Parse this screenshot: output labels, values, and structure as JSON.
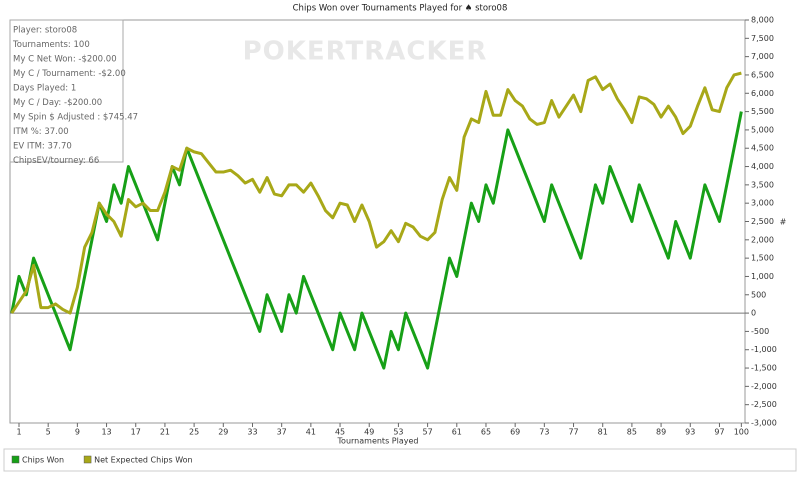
{
  "chart_data": {
    "type": "line",
    "title": "Chips Won over Tournaments Played for ♠ storo08",
    "watermark": "POKERTRACKER",
    "x_label": "Tournaments Played",
    "y_label": "#",
    "info": [
      "Player: storo08",
      "Tournaments: 100",
      "My C Net Won: -$200.00",
      "My C / Tournament: -$2.00",
      "Days Played: 1",
      "My C / Day: -$200.00",
      "My Spin $ Adjusted : $745.47",
      "ITM %: 37.00",
      "EV ITM: 37.70",
      "ChipsEV/tourney: 66"
    ],
    "x": [
      0,
      1,
      2,
      3,
      4,
      5,
      6,
      7,
      8,
      9,
      10,
      11,
      12,
      13,
      14,
      15,
      16,
      17,
      18,
      19,
      20,
      21,
      22,
      23,
      24,
      25,
      26,
      27,
      28,
      29,
      30,
      31,
      32,
      33,
      34,
      35,
      36,
      37,
      38,
      39,
      40,
      41,
      42,
      43,
      44,
      45,
      46,
      47,
      48,
      49,
      50,
      51,
      52,
      53,
      54,
      55,
      56,
      57,
      58,
      59,
      60,
      61,
      62,
      63,
      64,
      65,
      66,
      67,
      68,
      69,
      70,
      71,
      72,
      73,
      74,
      75,
      76,
      77,
      78,
      79,
      80,
      81,
      82,
      83,
      84,
      85,
      86,
      87,
      88,
      89,
      90,
      91,
      92,
      93,
      94,
      95,
      96,
      97,
      98,
      99,
      100
    ],
    "series": [
      {
        "name": "Chips Won",
        "color": "#17a017",
        "values": [
          0,
          1000,
          500,
          1500,
          1000,
          500,
          0,
          -500,
          -1000,
          0,
          1000,
          2000,
          3000,
          2500,
          3500,
          3000,
          4000,
          3500,
          3000,
          2500,
          2000,
          3000,
          4000,
          3500,
          4500,
          4000,
          3500,
          3000,
          2500,
          2000,
          1500,
          1000,
          500,
          0,
          -500,
          500,
          0,
          -500,
          500,
          0,
          1000,
          500,
          0,
          -500,
          -1000,
          0,
          -500,
          -1000,
          0,
          -500,
          -1000,
          -1500,
          -500,
          -1000,
          0,
          -500,
          -1000,
          -1500,
          -500,
          500,
          1500,
          1000,
          2000,
          3000,
          2500,
          3500,
          3000,
          4000,
          5000,
          4500,
          4000,
          3500,
          3000,
          2500,
          3500,
          3000,
          2500,
          2000,
          1500,
          2500,
          3500,
          3000,
          4000,
          3500,
          3000,
          2500,
          3500,
          3000,
          2500,
          2000,
          1500,
          2500,
          2000,
          1500,
          2500,
          3500,
          3000,
          2500,
          3500,
          4500,
          5500
        ]
      },
      {
        "name": "Net Expected Chips Won",
        "color": "#a8a818",
        "values": [
          0,
          300,
          600,
          1300,
          150,
          150,
          250,
          100,
          0,
          700,
          1800,
          2200,
          3000,
          2700,
          2500,
          2100,
          3100,
          2900,
          3000,
          2800,
          2800,
          3300,
          4000,
          3900,
          4500,
          4400,
          4350,
          4100,
          3850,
          3850,
          3900,
          3750,
          3550,
          3650,
          3300,
          3700,
          3250,
          3200,
          3500,
          3500,
          3300,
          3550,
          3200,
          2800,
          2600,
          3000,
          2950,
          2500,
          2950,
          2500,
          1800,
          1950,
          2250,
          1950,
          2450,
          2350,
          2100,
          2000,
          2200,
          3100,
          3700,
          3350,
          4800,
          5300,
          5200,
          6050,
          5400,
          5400,
          6100,
          5800,
          5650,
          5300,
          5150,
          5200,
          5800,
          5350,
          5650,
          5950,
          5500,
          6350,
          6450,
          6100,
          6250,
          5850,
          5550,
          5200,
          5900,
          5850,
          5700,
          5350,
          5650,
          5350,
          4900,
          5100,
          5650,
          6150,
          5550,
          5500,
          6150,
          6500,
          6550
        ]
      }
    ],
    "xlim": [
      0,
      100.5
    ],
    "xticks": [
      1,
      5,
      9,
      13,
      17,
      21,
      25,
      29,
      33,
      37,
      41,
      45,
      49,
      53,
      57,
      61,
      65,
      69,
      73,
      77,
      81,
      85,
      89,
      93,
      97,
      100
    ],
    "ylim": [
      -3000,
      8000
    ],
    "yticks": [
      {
        "value": -3000,
        "label": "-3,000"
      },
      {
        "value": -2500,
        "label": "-2,500"
      },
      {
        "value": -2000,
        "label": "-2,000"
      },
      {
        "value": -1500,
        "label": "-1,500"
      },
      {
        "value": -1000,
        "label": "-1,000"
      },
      -500,
      0,
      500,
      {
        "value": 1000,
        "label": "1,000"
      },
      {
        "value": 1500,
        "label": "1,500"
      },
      {
        "value": 2000,
        "label": "2,000"
      },
      {
        "value": 2500,
        "label": "2,500"
      },
      {
        "value": 3000,
        "label": "3,000"
      },
      {
        "value": 3500,
        "label": "3,500"
      },
      {
        "value": 4000,
        "label": "4,000"
      },
      {
        "value": 4500,
        "label": "4,500"
      },
      {
        "value": 5000,
        "label": "5,000"
      },
      {
        "value": 5500,
        "label": "5,500"
      },
      {
        "value": 6000,
        "label": "6,000"
      },
      {
        "value": 6500,
        "label": "6,500"
      },
      {
        "value": 7000,
        "label": "7,000"
      },
      {
        "value": 7500,
        "label": "7,500"
      },
      {
        "value": 8000,
        "label": "8,000"
      }
    ],
    "zero_line": true
  }
}
